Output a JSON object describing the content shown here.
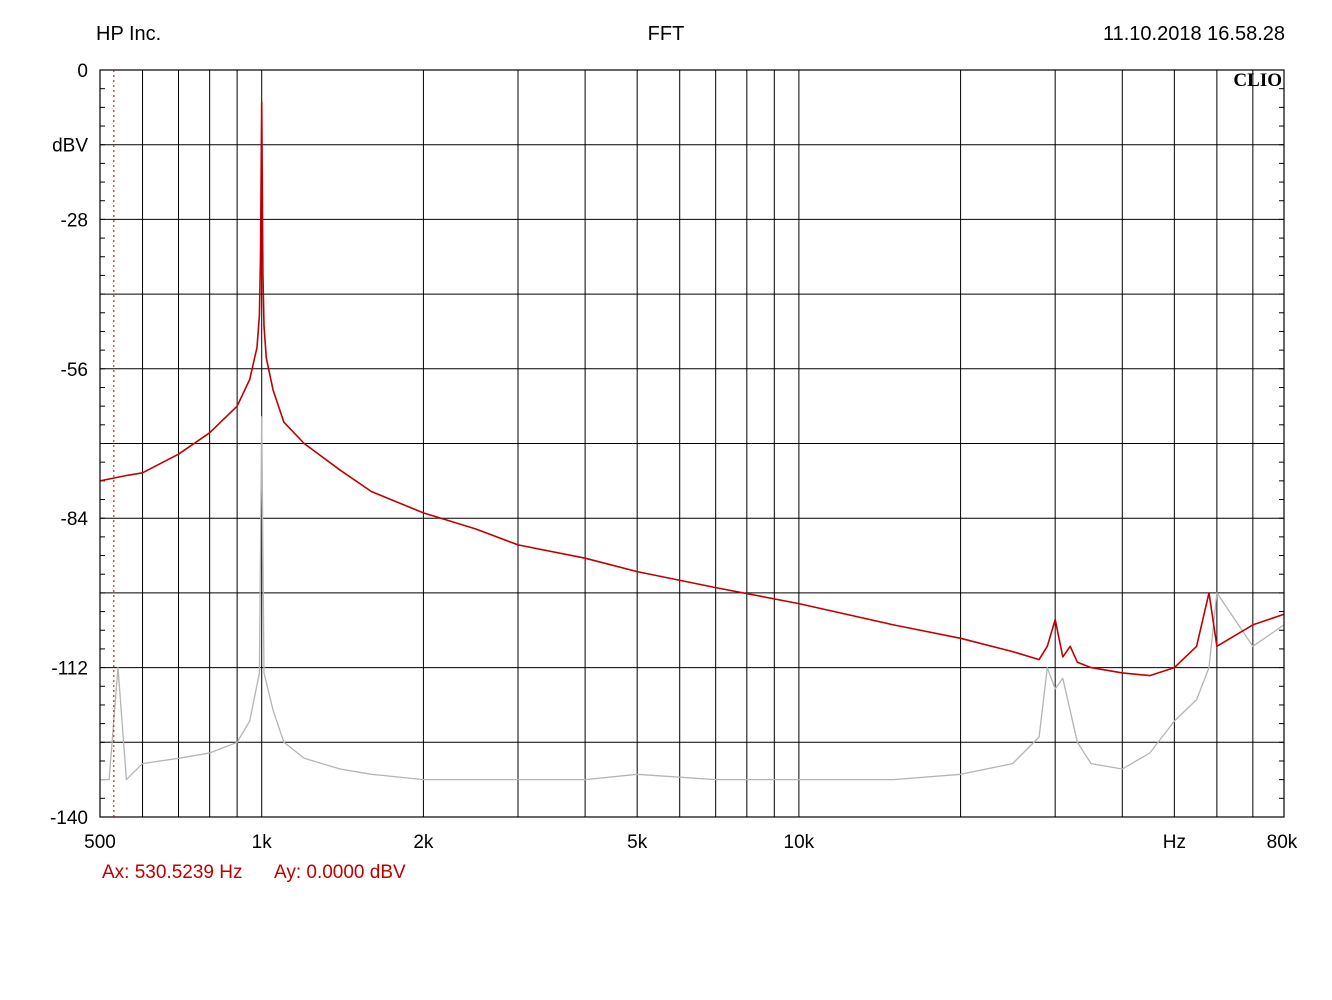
{
  "header": {
    "company": "HP Inc.",
    "title": "FFT",
    "timestamp": "11.10.2018 16.58.28"
  },
  "brand": "CLIO",
  "cursor": {
    "ax": "Ax: 530.5239 Hz",
    "ay": "Ay: 0.0000 dBV",
    "frequency_hz": 530.5239
  },
  "colors": {
    "primary_trace": "#c00000",
    "secondary_trace": "#b4b4b4",
    "grid": "#000000",
    "cursor": "#c00000"
  },
  "chart_data": {
    "type": "line",
    "title": "FFT",
    "x_scale": "log",
    "xlim": [
      500,
      80000
    ],
    "ylim": [
      -140,
      0
    ],
    "xlabel": "Hz",
    "ylabel": "dBV",
    "grid": true,
    "x_tick_labels": [
      {
        "value": 500,
        "label": "500"
      },
      {
        "value": 1000,
        "label": "1k"
      },
      {
        "value": 2000,
        "label": "2k"
      },
      {
        "value": 5000,
        "label": "5k"
      },
      {
        "value": 10000,
        "label": "10k"
      },
      {
        "value": 50000,
        "label": "Hz"
      },
      {
        "value": 80000,
        "label": "80k"
      }
    ],
    "x_grid": [
      500,
      600,
      700,
      800,
      900,
      1000,
      2000,
      3000,
      4000,
      5000,
      6000,
      7000,
      8000,
      9000,
      10000,
      20000,
      30000,
      40000,
      50000,
      60000,
      70000,
      80000
    ],
    "y_ticks": [
      0,
      -14,
      -28,
      -42,
      -56,
      -70,
      -84,
      -98,
      -112,
      -126,
      -140
    ],
    "y_tick_labels": [
      {
        "value": 0,
        "label": "0"
      },
      {
        "value": -14,
        "label": "dBV"
      },
      {
        "value": -28,
        "label": "-28"
      },
      {
        "value": -56,
        "label": "-56"
      },
      {
        "value": -84,
        "label": "-84"
      },
      {
        "value": -112,
        "label": "-112"
      },
      {
        "value": -140,
        "label": "-140"
      }
    ],
    "series": [
      {
        "color": "#c00000",
        "x": [
          500,
          560,
          600,
          700,
          800,
          900,
          950,
          980,
          990,
          995,
          1000,
          1005,
          1010,
          1020,
          1050,
          1100,
          1200,
          1400,
          1600,
          2000,
          2500,
          3000,
          4000,
          5000,
          7000,
          10000,
          15000,
          20000,
          25000,
          28000,
          29000,
          30000,
          31000,
          32000,
          33000,
          35000,
          40000,
          45000,
          50000,
          55000,
          58000,
          60000,
          70000,
          80000
        ],
        "y": [
          -77,
          -76,
          -75.5,
          -72,
          -68,
          -63,
          -58,
          -52,
          -46,
          -35,
          -6,
          -38,
          -48,
          -54,
          -60,
          -66,
          -70,
          -75,
          -79,
          -83,
          -86,
          -89,
          -91.5,
          -94,
          -97,
          -100,
          -104,
          -106.5,
          -109,
          -110.5,
          -108,
          -103,
          -110,
          -108,
          -111,
          -112,
          -113,
          -113.5,
          -112,
          -108,
          -98,
          -108,
          -104,
          -102
        ]
      },
      {
        "color": "#b4b4b4",
        "x": [
          500,
          520,
          540,
          560,
          600,
          700,
          800,
          900,
          950,
          990,
          1000,
          1010,
          1050,
          1100,
          1200,
          1400,
          1600,
          2000,
          2500,
          3000,
          4000,
          5000,
          7000,
          10000,
          15000,
          20000,
          25000,
          28000,
          29000,
          30000,
          31000,
          33000,
          35000,
          40000,
          45000,
          50000,
          55000,
          58000,
          60000,
          70000,
          80000
        ],
        "y": [
          -133,
          -133,
          -112,
          -133,
          -130,
          -129,
          -128,
          -126,
          -122,
          -113,
          -65,
          -113,
          -120,
          -126,
          -129,
          -131,
          -132,
          -133,
          -133,
          -133,
          -133,
          -132,
          -133,
          -133,
          -133,
          -132,
          -130,
          -125,
          -112,
          -116,
          -114,
          -126,
          -130,
          -131,
          -128,
          -122,
          -118,
          -112,
          -98,
          -108,
          -104
        ]
      }
    ]
  }
}
